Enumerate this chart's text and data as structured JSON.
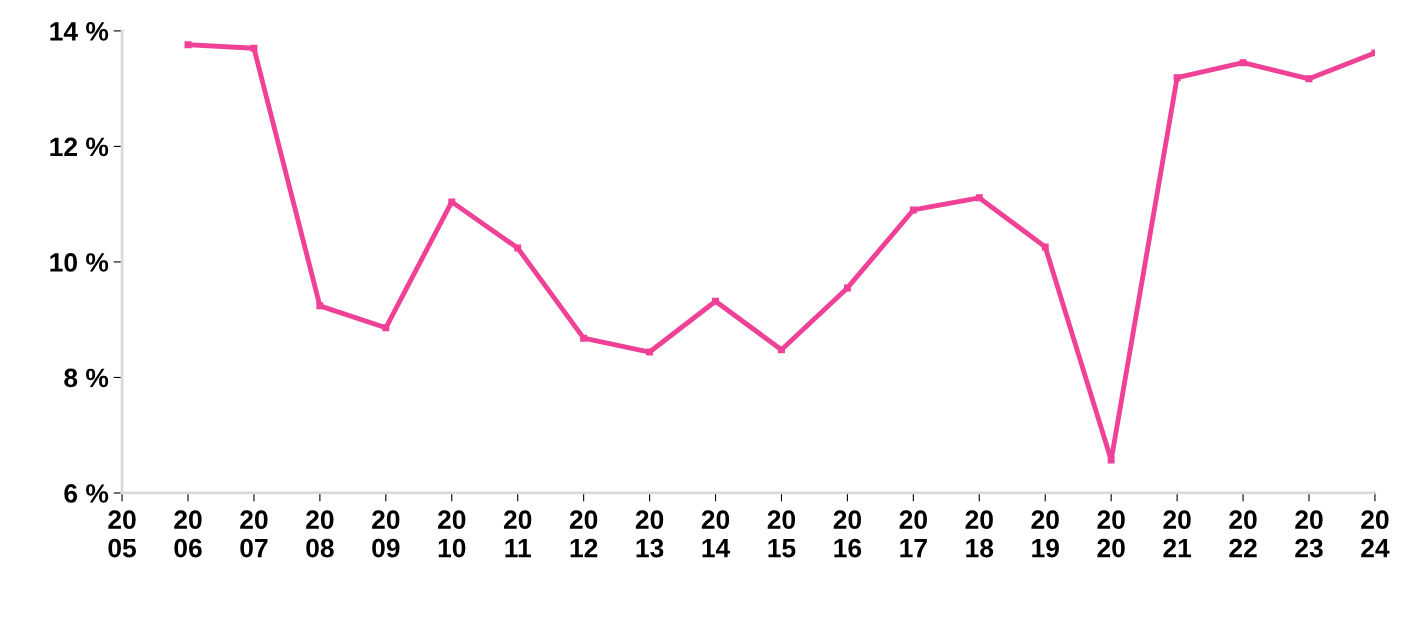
{
  "chart_data": {
    "type": "line",
    "categories": [
      "2005",
      "2006",
      "2007",
      "2008",
      "2009",
      "2010",
      "2011",
      "2012",
      "2013",
      "2014",
      "2015",
      "2016",
      "2017",
      "2018",
      "2019",
      "2020",
      "2021",
      "2022",
      "2023",
      "2024"
    ],
    "series": [
      {
        "color": "#ef4196",
        "values": [
          null,
          13.76,
          13.7,
          9.24,
          8.86,
          11.04,
          10.24,
          8.68,
          8.44,
          9.32,
          8.48,
          9.55,
          10.9,
          11.11,
          10.26,
          6.57,
          13.19,
          13.45,
          13.17,
          13.62
        ]
      }
    ],
    "ylim": [
      6,
      14
    ],
    "yticks": [
      {
        "value": 6,
        "label": "6 %"
      },
      {
        "value": 8,
        "label": "8 %"
      },
      {
        "value": 10,
        "label": "10 %"
      },
      {
        "value": 12,
        "label": "12 %"
      },
      {
        "value": 14,
        "label": "14 %"
      }
    ],
    "grid": false,
    "legend": false,
    "marker": "square",
    "line_style": "solid"
  }
}
